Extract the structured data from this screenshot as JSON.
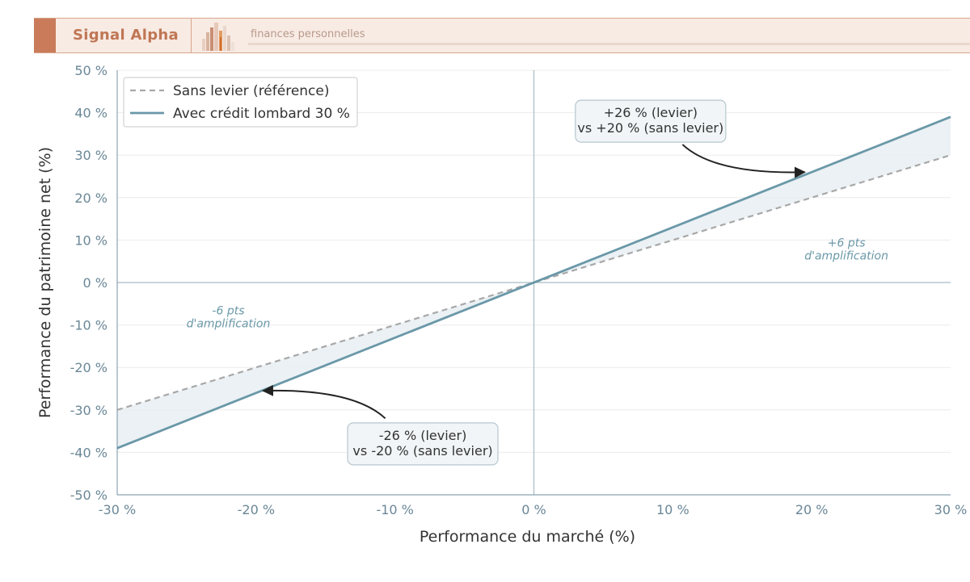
{
  "header": {
    "brand": "Signal Alpha",
    "tagline": "finances personnelles",
    "logo_icon": "bar-chart-icon",
    "brand_color": "#c07654"
  },
  "chart_data": {
    "type": "line",
    "xlabel": "Performance du marché (%)",
    "ylabel": "Performance du patrimoine net (%)",
    "xlim": [
      -30,
      30
    ],
    "ylim": [
      -50,
      50
    ],
    "x_ticks": [
      -30,
      -20,
      -10,
      0,
      10,
      20,
      30
    ],
    "y_ticks": [
      -50,
      -40,
      -30,
      -20,
      -10,
      0,
      10,
      20,
      30,
      40,
      50
    ],
    "x_tick_labels": [
      "-30 %",
      "-20 %",
      "-10 %",
      "0 %",
      "10 %",
      "20 %",
      "30 %"
    ],
    "y_tick_labels": [
      "-50 %",
      "-40 %",
      "-30 %",
      "-20 %",
      "-10 %",
      "0 %",
      "10 %",
      "20 %",
      "30 %",
      "40 %",
      "50 %"
    ],
    "grid": true,
    "legend_position": "top-left",
    "series": [
      {
        "name": "Sans levier (référence)",
        "style": "dashed",
        "color": "#a8a8a8",
        "x": [
          -30,
          30
        ],
        "y": [
          -30,
          30
        ]
      },
      {
        "name": "Avec crédit lombard 30 %",
        "style": "solid",
        "color": "#6a98a8",
        "x": [
          -30,
          30
        ],
        "y": [
          -39,
          39
        ]
      }
    ],
    "fill_between": {
      "color": "#e9f0f3"
    },
    "annotations": [
      {
        "lines": [
          "+26 % (levier)",
          "vs +20 % (sans levier)"
        ],
        "box": true,
        "text_at": [
          8.4,
          38
        ],
        "arrow_from": [
          10.7,
          32.5
        ],
        "arrow_to": [
          19.5,
          26
        ]
      },
      {
        "lines": [
          "-26 % (levier)",
          "vs -20 % (sans levier)"
        ],
        "box": true,
        "text_at": [
          -8,
          -38
        ],
        "arrow_from": [
          -10.7,
          -32
        ],
        "arrow_to": [
          -19.5,
          -25.5
        ]
      },
      {
        "lines": [
          "+6 pts",
          "d'amplification"
        ],
        "box": false,
        "italic": true,
        "text_at": [
          22.5,
          8.5
        ]
      },
      {
        "lines": [
          "-6 pts",
          "d'amplification"
        ],
        "box": false,
        "italic": true,
        "text_at": [
          -22,
          -7.5
        ]
      }
    ]
  }
}
